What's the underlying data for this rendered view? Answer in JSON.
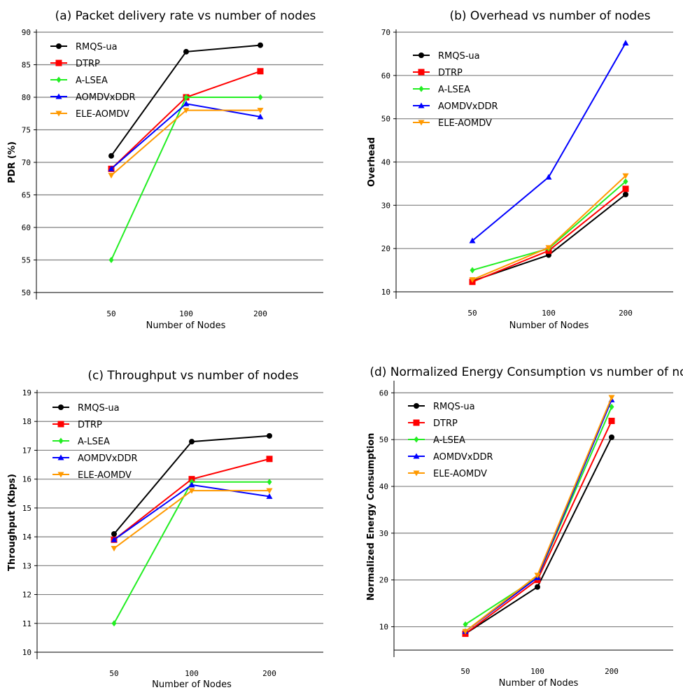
{
  "chart_data": [
    {
      "type": "line",
      "title": "(a) Packet delivery rate vs number of nodes",
      "xlabel": "Number of Nodes",
      "ylabel": "PDR (%)",
      "categories": [
        "50",
        "100",
        "200"
      ],
      "ylim": [
        50,
        90
      ],
      "yticks": [
        "50",
        "55",
        "60",
        "65",
        "70",
        "75",
        "80",
        "85",
        "90"
      ],
      "grid": true,
      "legend": "top-left",
      "series": [
        {
          "name": "RMQS-ua",
          "values": [
            71,
            87,
            88
          ]
        },
        {
          "name": "DTRP",
          "values": [
            69,
            80,
            84
          ]
        },
        {
          "name": "A-LSEA",
          "values": [
            55,
            80,
            80
          ]
        },
        {
          "name": "AOMDVxDDR",
          "values": [
            69,
            79,
            77
          ]
        },
        {
          "name": "ELE-AOMDV",
          "values": [
            68,
            78,
            78
          ]
        }
      ]
    },
    {
      "type": "line",
      "title": "(b) Overhead vs number of nodes",
      "xlabel": "Number of Nodes",
      "ylabel": "Overhead",
      "categories": [
        "50",
        "100",
        "200"
      ],
      "ylim": [
        10,
        70
      ],
      "yticks": [
        "10",
        "20",
        "30",
        "40",
        "50",
        "60",
        "70"
      ],
      "grid": true,
      "legend": "top-left",
      "series": [
        {
          "name": "RMQS-ua",
          "values": [
            12.5,
            18.5,
            32.5
          ]
        },
        {
          "name": "DTRP",
          "values": [
            12.3,
            19.5,
            33.8
          ]
        },
        {
          "name": "A-LSEA",
          "values": [
            15,
            20,
            35.5
          ]
        },
        {
          "name": "AOMDVxDDR",
          "values": [
            21.8,
            36.5,
            67.5
          ]
        },
        {
          "name": "ELE-AOMDV",
          "values": [
            12.8,
            20.2,
            36.8
          ]
        }
      ]
    },
    {
      "type": "line",
      "title": "(c) Throughput vs number of nodes",
      "xlabel": "Number of Nodes",
      "ylabel": "Throughput (Kbps)",
      "categories": [
        "50",
        "100",
        "200"
      ],
      "ylim": [
        10,
        19
      ],
      "yticks": [
        "10",
        "11",
        "12",
        "13",
        "14",
        "15",
        "16",
        "17",
        "18",
        "19"
      ],
      "grid": true,
      "legend": "top-left",
      "series": [
        {
          "name": "RMQS-ua",
          "values": [
            14.1,
            17.3,
            17.5
          ]
        },
        {
          "name": "DTRP",
          "values": [
            13.9,
            16.0,
            16.7
          ]
        },
        {
          "name": "A-LSEA",
          "values": [
            11.0,
            15.9,
            15.9
          ]
        },
        {
          "name": "AOMDVxDDR",
          "values": [
            13.9,
            15.8,
            15.4
          ]
        },
        {
          "name": "ELE-AOMDV",
          "values": [
            13.6,
            15.6,
            15.6
          ]
        }
      ]
    },
    {
      "type": "line",
      "title": "(d) Normalized Energy Consumption vs number of nodes",
      "xlabel": "Number of Nodes",
      "ylabel": "Normalized Energy Consumption",
      "categories": [
        "50",
        "100",
        "200"
      ],
      "ylim": [
        5,
        62
      ],
      "yticks": [
        "10",
        "20",
        "30",
        "40",
        "50",
        "60"
      ],
      "grid": true,
      "legend": "top-left",
      "series": [
        {
          "name": "RMQS-ua",
          "values": [
            8.5,
            18.5,
            50.5
          ]
        },
        {
          "name": "DTRP",
          "values": [
            8.5,
            20,
            54
          ]
        },
        {
          "name": "A-LSEA",
          "values": [
            10.5,
            20.5,
            57
          ]
        },
        {
          "name": "AOMDVxDDR",
          "values": [
            9,
            20.5,
            58.5
          ]
        },
        {
          "name": "ELE-AOMDV",
          "values": [
            9,
            21,
            59
          ]
        }
      ]
    }
  ],
  "series_styles": [
    {
      "color": "#000000",
      "marker": "circle"
    },
    {
      "color": "#ff0000",
      "marker": "square"
    },
    {
      "color": "#22ee22",
      "marker": "diamond"
    },
    {
      "color": "#0000ff",
      "marker": "triangle-up"
    },
    {
      "color": "#ff9900",
      "marker": "triangle-down"
    }
  ]
}
